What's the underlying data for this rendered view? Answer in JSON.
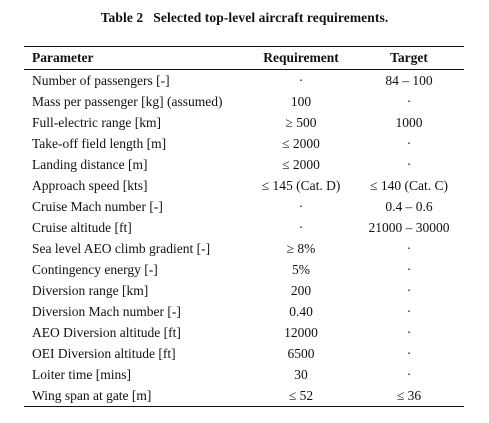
{
  "caption": {
    "label": "Table 2",
    "title": "Selected top-level aircraft requirements."
  },
  "table": {
    "headers": [
      "Parameter",
      "Requirement",
      "Target"
    ],
    "rows": [
      [
        "Number of passengers [-]",
        "·",
        "84 – 100"
      ],
      [
        "Mass per passenger [kg] (assumed)",
        "100",
        "·"
      ],
      [
        "Full-electric range [km]",
        "≥ 500",
        "1000"
      ],
      [
        "Take-off field length [m]",
        "≤ 2000",
        "·"
      ],
      [
        "Landing distance [m]",
        "≤ 2000",
        "·"
      ],
      [
        "Approach speed [kts]",
        "≤ 145 (Cat. D)",
        "≤ 140 (Cat. C)"
      ],
      [
        "Cruise Mach number [-]",
        "·",
        "0.4 – 0.6"
      ],
      [
        "Cruise altitude [ft]",
        "·",
        "21000 – 30000"
      ],
      [
        "Sea level AEO climb gradient [-]",
        "≥ 8%",
        "·"
      ],
      [
        "Contingency energy [-]",
        "5%",
        "·"
      ],
      [
        "Diversion range [km]",
        "200",
        "·"
      ],
      [
        "Diversion Mach number [-]",
        "0.40",
        "·"
      ],
      [
        "AEO Diversion altitude [ft]",
        "12000",
        "·"
      ],
      [
        "OEI Diversion altitude [ft]",
        "6500",
        "·"
      ],
      [
        "Loiter time [mins]",
        "30",
        "·"
      ],
      [
        "Wing span at gate [m]",
        "≤ 52",
        "≤ 36"
      ]
    ]
  }
}
